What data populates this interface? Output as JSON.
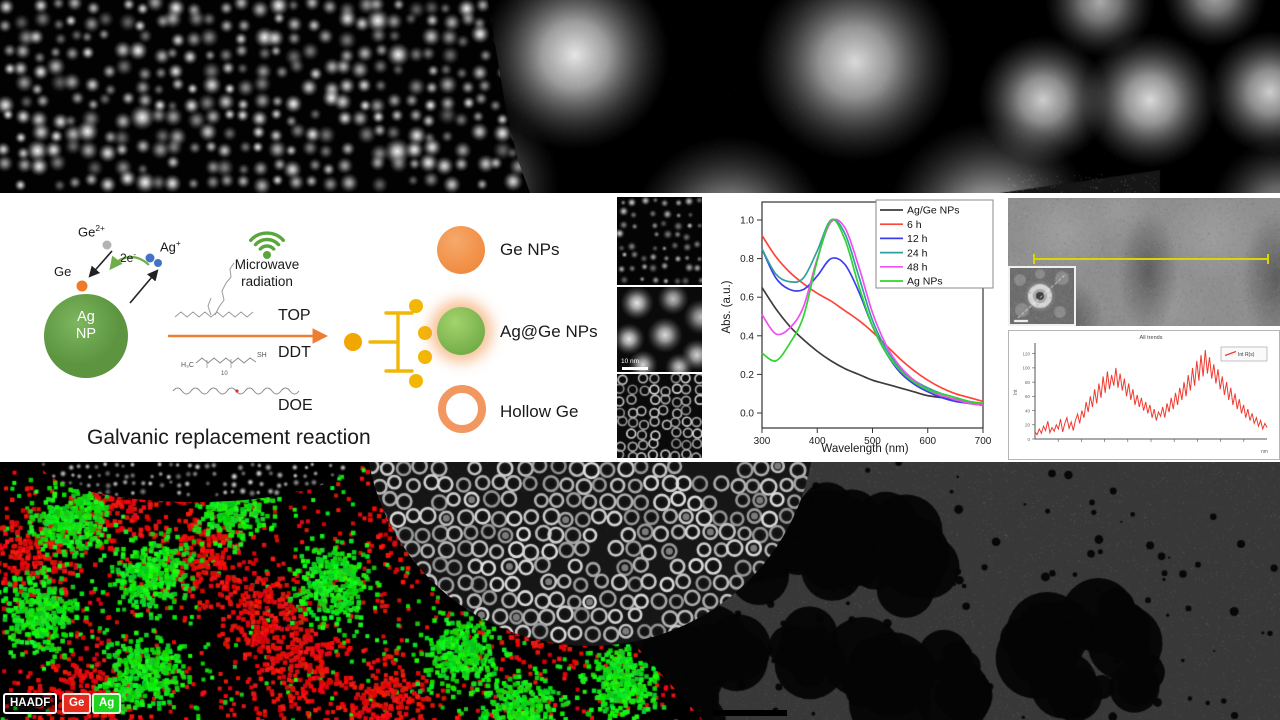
{
  "schematic": {
    "species": {
      "ge_ion_base": "Ge",
      "ge_ion_sup": "2+",
      "ge_atom": "Ge",
      "electrons_base": "2e",
      "electrons_sup": "-",
      "silver_ion_base": "Ag",
      "silver_ion_sup": "+"
    },
    "ag_np_line1": "Ag",
    "ag_np_line2": "NP",
    "microwave_line1": "Microwave",
    "microwave_line2": "radiation",
    "reagents": {
      "top": "TOP",
      "ddt": "DDT",
      "doe": "DOE",
      "ddt_left": "H₃C",
      "ddt_right": "SH",
      "ddt_sub": "10"
    },
    "caption": "Galvanic replacement reaction"
  },
  "products": {
    "ge": "Ge NPs",
    "agge": "Ag@Ge NPs",
    "hollow": "Hollow Ge"
  },
  "tem": {
    "scale_bar": "10 nm"
  },
  "bottom_labels": {
    "haadf": "HAADF",
    "ge": "Ge",
    "ag": "Ag"
  },
  "colors": {
    "np_green": "#6aa84f",
    "accent_green": "#5aa63c",
    "arrow_orange": "#ed7d31",
    "micelle_yellow": "#f2b705",
    "product_orange": "#f0894a",
    "eds_red": "#e52b1d",
    "eds_green": "#1fd41f",
    "profile_red": "#f03b30",
    "yellow_line": "#d8d800"
  },
  "chart_data": [
    {
      "type": "line",
      "title": "",
      "xlabel": "Wavelength (nm)",
      "ylabel": "Abs. (a.u.)",
      "x": [
        300,
        325,
        350,
        375,
        400,
        425,
        450,
        475,
        500,
        525,
        550,
        575,
        600,
        625,
        650,
        675,
        700
      ],
      "xlim": [
        300,
        700
      ],
      "ylim": [
        0.0,
        1.05
      ],
      "xticks": [
        300,
        400,
        500,
        600,
        700
      ],
      "yticks": [
        "0.0",
        "0.2",
        "0.4",
        "0.6",
        "0.8",
        "1.0"
      ],
      "grid": false,
      "legend_position": "top-right",
      "series": [
        {
          "name": "Ag/Ge NPs",
          "color": "#3d3d3d",
          "values": [
            0.65,
            0.54,
            0.45,
            0.38,
            0.32,
            0.27,
            0.23,
            0.2,
            0.17,
            0.15,
            0.13,
            0.11,
            0.09,
            0.08,
            0.07,
            0.05,
            0.04
          ]
        },
        {
          "name": "6 h",
          "color": "#ff4438",
          "values": [
            0.92,
            0.81,
            0.73,
            0.67,
            0.62,
            0.58,
            0.53,
            0.48,
            0.42,
            0.35,
            0.28,
            0.22,
            0.17,
            0.13,
            0.1,
            0.08,
            0.06
          ]
        },
        {
          "name": "12 h",
          "color": "#3c3cf0",
          "values": [
            0.85,
            0.7,
            0.64,
            0.64,
            0.71,
            0.8,
            0.77,
            0.63,
            0.45,
            0.31,
            0.21,
            0.15,
            0.11,
            0.08,
            0.06,
            0.05,
            0.04
          ]
        },
        {
          "name": "24 h",
          "color": "#2f9f9f",
          "values": [
            0.85,
            0.72,
            0.68,
            0.7,
            0.84,
            1.0,
            0.93,
            0.71,
            0.48,
            0.33,
            0.23,
            0.17,
            0.13,
            0.1,
            0.08,
            0.06,
            0.05
          ]
        },
        {
          "name": "48 h",
          "color": "#f24ff2",
          "values": [
            0.51,
            0.41,
            0.44,
            0.55,
            0.8,
            0.99,
            0.96,
            0.76,
            0.52,
            0.35,
            0.24,
            0.17,
            0.12,
            0.09,
            0.07,
            0.05,
            0.04
          ]
        },
        {
          "name": "Ag NPs",
          "color": "#2fd42f",
          "values": [
            0.31,
            0.27,
            0.36,
            0.5,
            0.79,
            1.0,
            0.9,
            0.66,
            0.45,
            0.31,
            0.22,
            0.16,
            0.12,
            0.1,
            0.08,
            0.06,
            0.05
          ]
        }
      ]
    },
    {
      "type": "line",
      "title": "All trends",
      "ylabel": "Int",
      "x_unit": "nm",
      "ylim": [
        0,
        135
      ],
      "yticks": [
        0,
        20,
        40,
        60,
        80,
        100,
        120
      ],
      "grid": false,
      "legend_position": "top-right",
      "series": [
        {
          "name": "Int R(s)",
          "color": "#f03b30",
          "values": [
            10,
            6,
            14,
            8,
            18,
            12,
            25,
            9,
            16,
            11,
            20,
            14,
            28,
            10,
            22,
            30,
            15,
            24,
            12,
            26,
            35,
            22,
            40,
            30,
            52,
            38,
            60,
            45,
            70,
            50,
            78,
            58,
            88,
            65,
            95,
            70,
            90,
            75,
            100,
            72,
            92,
            68,
            85,
            60,
            78,
            55,
            70,
            48,
            62,
            45,
            58,
            40,
            52,
            36,
            48,
            30,
            42,
            26,
            38,
            32,
            45,
            30,
            50,
            38,
            58,
            42,
            65,
            48,
            72,
            55,
            80,
            60,
            90,
            68,
            100,
            75,
            110,
            82,
            118,
            88,
            125,
            92,
            115,
            85,
            105,
            78,
            98,
            70,
            88,
            62,
            80,
            55,
            72,
            48,
            64,
            42,
            56,
            36,
            48,
            30,
            42,
            26,
            36,
            22,
            30,
            18,
            26,
            14,
            22,
            16
          ]
        }
      ]
    }
  ]
}
